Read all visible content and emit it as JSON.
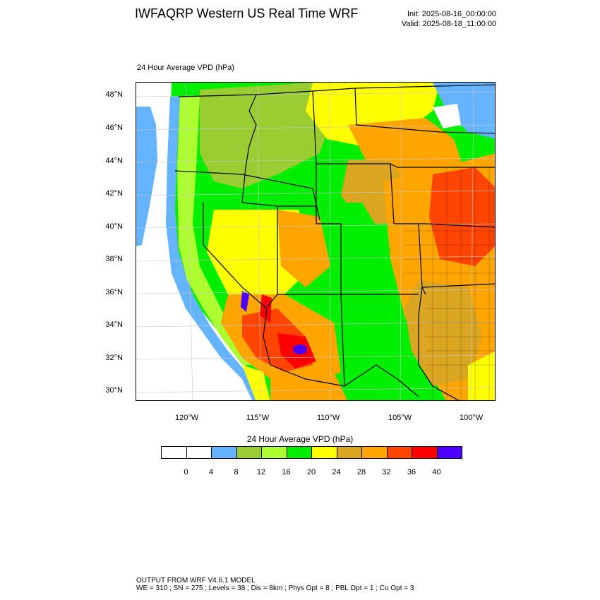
{
  "header": {
    "title": "IWFAQRP Western US Real Time WRF",
    "init": "Init: 2025-08-16_00:00:00",
    "valid": "Valid: 2025-08-18_11:00:00"
  },
  "map": {
    "field_title": "24 Hour Average VPD   (hPa)",
    "lat_labels": [
      "48°N",
      "46°N",
      "44°N",
      "42°N",
      "40°N",
      "38°N",
      "36°N",
      "34°N",
      "32°N",
      "30°N"
    ],
    "lon_labels": [
      "120°W",
      "115°W",
      "110°W",
      "105°W",
      "100°W"
    ]
  },
  "colorbar": {
    "title": "24 Hour Average VPD  (hPa)",
    "labels": [
      "0",
      "4",
      "8",
      "12",
      "16",
      "20",
      "24",
      "28",
      "32",
      "36",
      "40"
    ],
    "colors": [
      "#ffffff",
      "#ffffff",
      "#64b4ff",
      "#9acd32",
      "#adff2f",
      "#00ee00",
      "#ffff00",
      "#daa520",
      "#ffa500",
      "#ff4500",
      "#ff0000",
      "#4b00ff"
    ]
  },
  "footer": {
    "line1": "OUTPUT FROM WRF V4.6.1 MODEL",
    "line2": "WE = 310 ; SN = 275 ; Levels = 38 ; Dis = 8km ; Phys Opt = 8 ; PBL Opt = 1 ; Cu Opt = 3"
  }
}
